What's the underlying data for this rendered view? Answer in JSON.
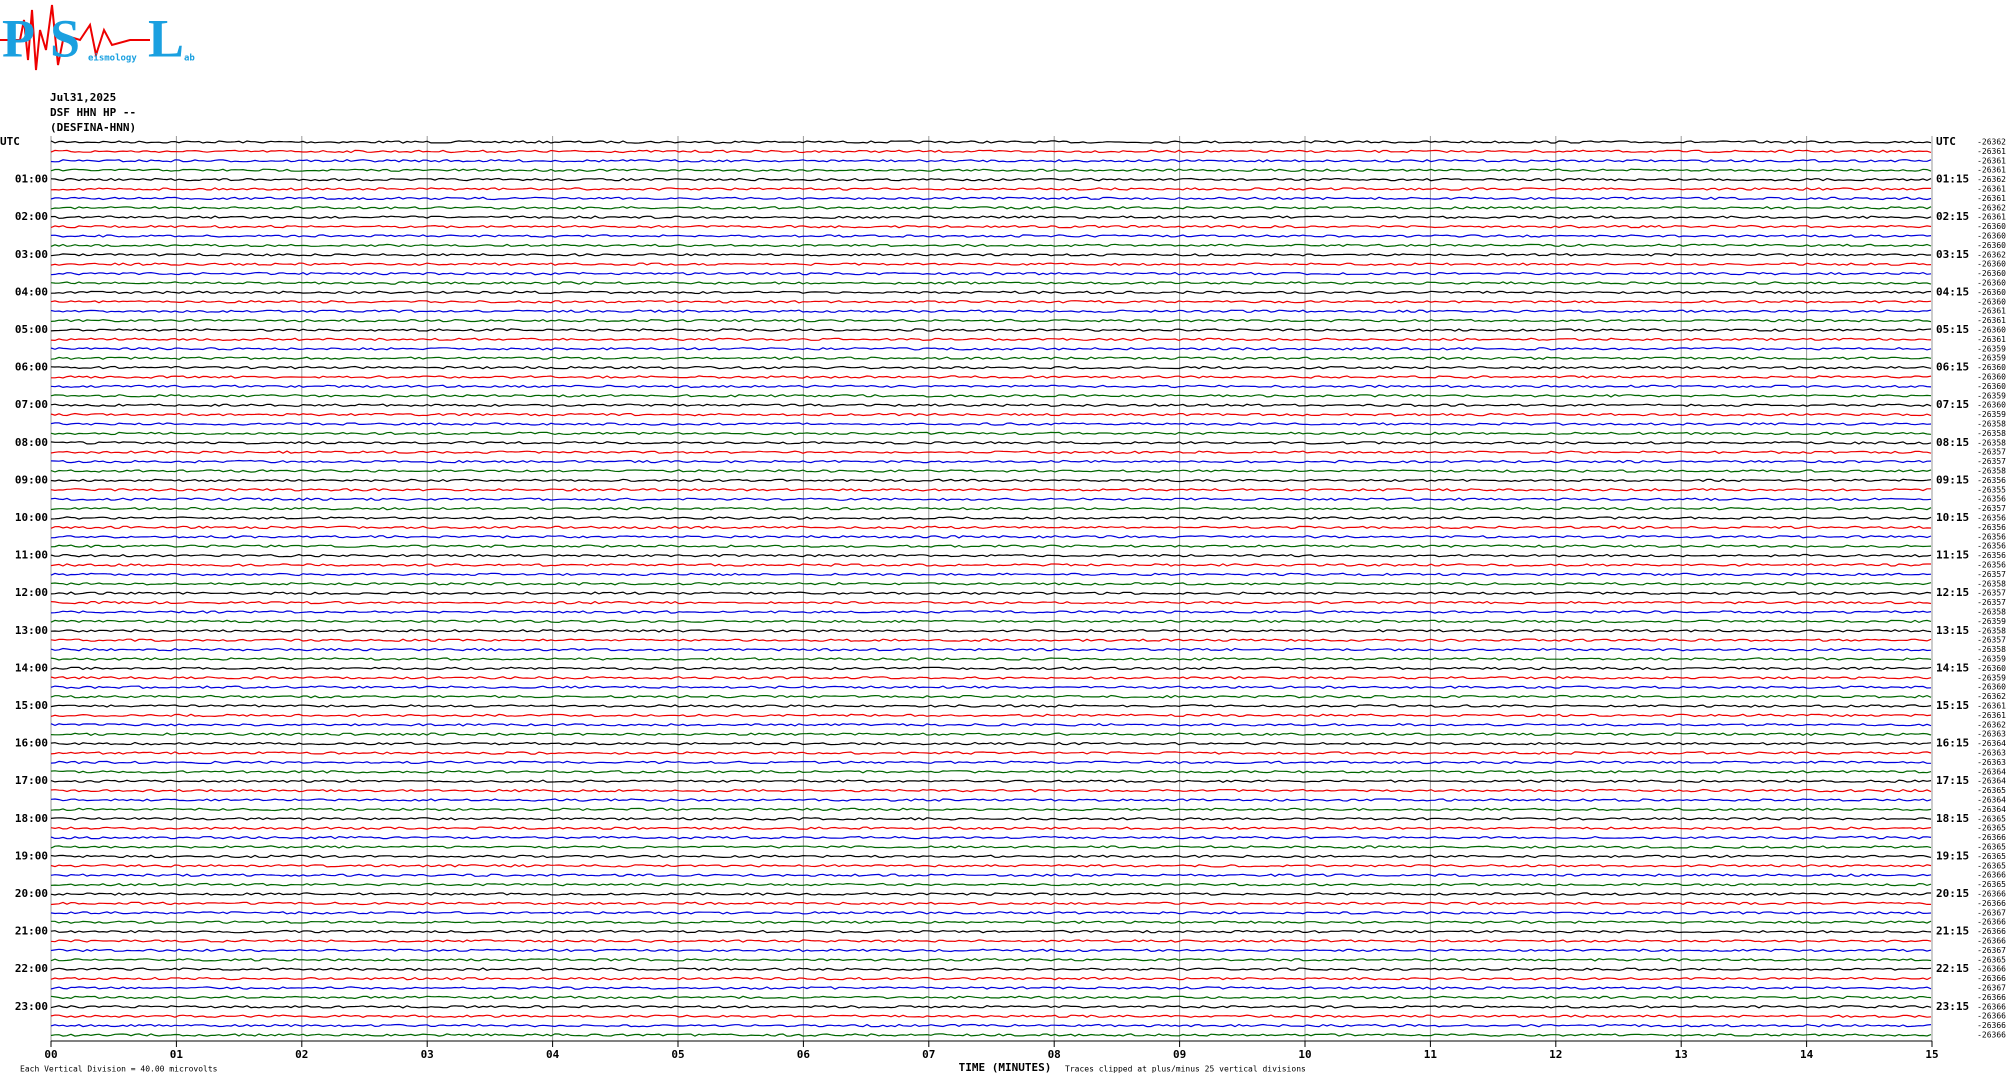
{
  "logo": {
    "letters": [
      "P",
      "S",
      "L"
    ],
    "words": [
      "eismology",
      "ab"
    ]
  },
  "header": {
    "date": "Jul31,2025",
    "channel": "DSF HHN HP --",
    "station": "(DESFINA-HNN)"
  },
  "left_labels": [
    "UTC",
    "01:00",
    "02:00",
    "03:00",
    "04:00",
    "05:00",
    "06:00",
    "07:00",
    "08:00",
    "09:00",
    "10:00",
    "11:00",
    "12:00",
    "13:00",
    "14:00",
    "15:00",
    "16:00",
    "17:00",
    "18:00",
    "19:00",
    "20:00",
    "21:00",
    "22:00",
    "23:00"
  ],
  "right_labels": [
    "UTC",
    "01:15",
    "02:15",
    "03:15",
    "04:15",
    "05:15",
    "06:15",
    "07:15",
    "08:15",
    "09:15",
    "10:15",
    "11:15",
    "12:15",
    "13:15",
    "14:15",
    "15:15",
    "16:15",
    "17:15",
    "18:15",
    "19:15",
    "20:15",
    "21:15",
    "22:15",
    "23:15"
  ],
  "offsets": [
    -26362,
    -26361,
    -26361,
    -26361,
    -26362,
    -26361,
    -26361,
    -26362,
    -26361,
    -26360,
    -26360,
    -26360,
    -26362,
    -26360,
    -26360,
    -26360,
    -26360,
    -26360,
    -26361,
    -26361,
    -26360,
    -26361,
    -26359,
    -26359,
    -26360,
    -26360,
    -26360,
    -26359,
    -26360,
    -26359,
    -26358,
    -26358,
    -26358,
    -26357,
    -26357,
    -26358,
    -26356,
    -26355,
    -26356,
    -26357,
    -26356,
    -26356,
    -26356,
    -26356,
    -26356,
    -26356,
    -26357,
    -26358,
    -26357,
    -26357,
    -26358,
    -26359,
    -26358,
    -26357,
    -26358,
    -26359,
    -26360,
    -26359,
    -26360,
    -26362,
    -26361,
    -26361,
    -26362,
    -26363,
    -26364,
    -26363,
    -26363,
    -26364,
    -26364,
    -26365,
    -26364,
    -26364,
    -26365,
    -26365,
    -26366,
    -26365,
    -26365,
    -26365,
    -26366,
    -26365,
    -26366,
    -26366,
    -26367,
    -26366,
    -26366,
    -26366,
    -26367,
    -26365,
    -26366,
    -26366,
    -26367,
    -26366,
    -26366,
    -26366,
    -26366,
    -26366
  ],
  "x_ticks": [
    "00",
    "01",
    "02",
    "03",
    "04",
    "05",
    "06",
    "07",
    "08",
    "09",
    "10",
    "11",
    "12",
    "13",
    "14",
    "15"
  ],
  "x_title": "TIME (MINUTES)",
  "footer": {
    "division": "Each Vertical Division =   40.00 microvolts",
    "clip": "Traces clipped at plus/minus 25 vertical divisions"
  }
}
